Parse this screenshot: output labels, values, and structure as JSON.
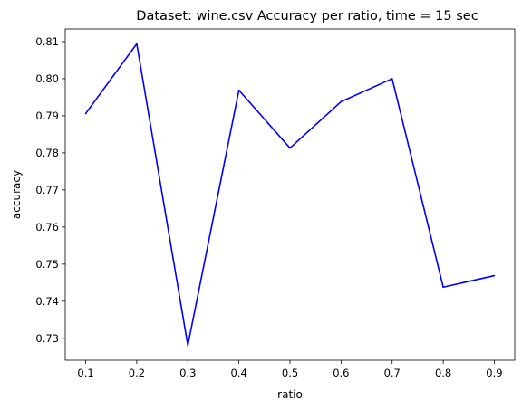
{
  "chart_data": {
    "type": "line",
    "title": "Dataset: wine.csv Accuracy per ratio, time = 15 sec",
    "xlabel": "ratio",
    "ylabel": "accuracy",
    "x": [
      0.1,
      0.2,
      0.3,
      0.4,
      0.5,
      0.6,
      0.7,
      0.8,
      0.9
    ],
    "series": [
      {
        "values": [
          0.7906,
          0.8094,
          0.7281,
          0.7969,
          0.7813,
          0.7938,
          0.8,
          0.7438,
          0.7469
        ],
        "color": "#0000ff"
      }
    ],
    "xlim": [
      0.06,
      0.94
    ],
    "ylim": [
      0.7241,
      0.8134
    ],
    "xticks": [
      "0.1",
      "0.2",
      "0.3",
      "0.4",
      "0.5",
      "0.6",
      "0.7",
      "0.8",
      "0.9"
    ],
    "yticks": [
      "0.73",
      "0.74",
      "0.75",
      "0.76",
      "0.77",
      "0.78",
      "0.79",
      "0.80",
      "0.81"
    ],
    "grid": false,
    "legend": "none"
  }
}
